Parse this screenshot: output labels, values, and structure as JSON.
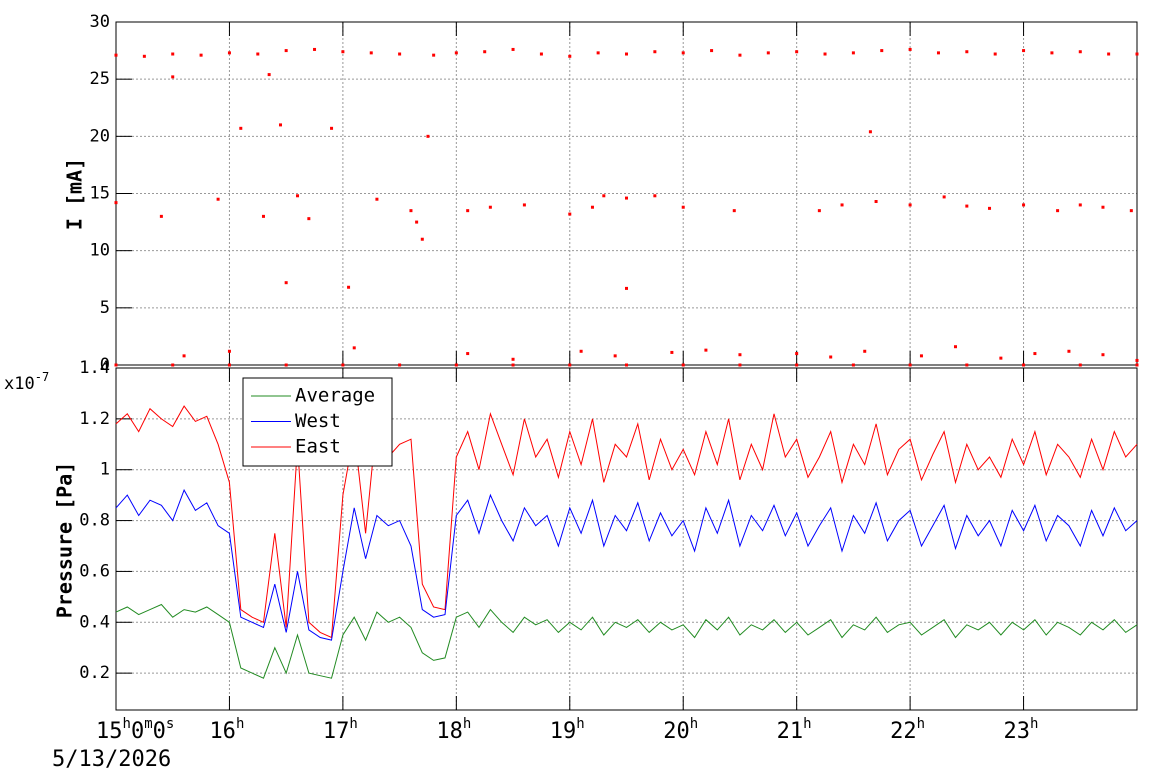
{
  "chart_data": [
    {
      "type": "scatter",
      "y_label": "I [mA]",
      "color": "#ff0000",
      "xlim": [
        15,
        24
      ],
      "ylim": [
        0,
        30
      ],
      "yticks": [
        0,
        5,
        10,
        15,
        20,
        25,
        30
      ],
      "grid": true,
      "x": [
        15.0,
        15.25,
        15.5,
        15.75,
        16.0,
        16.25,
        16.5,
        16.75,
        17.0,
        17.25,
        17.5,
        17.8,
        18.0,
        18.25,
        18.5,
        18.75,
        19.0,
        19.25,
        19.5,
        19.75,
        20.0,
        20.25,
        20.5,
        20.75,
        21.0,
        21.25,
        21.5,
        21.75,
        22.0,
        22.25,
        22.5,
        22.75,
        23.0,
        23.25,
        23.5,
        23.75,
        24.0,
        15.0,
        15.5,
        15.4,
        15.9,
        16.1,
        16.3,
        16.35,
        16.45,
        16.5,
        16.6,
        16.7,
        16.9,
        17.05,
        17.3,
        17.6,
        17.65,
        17.7,
        17.75,
        18.1,
        18.3,
        18.6,
        19.0,
        19.2,
        19.3,
        19.5,
        19.5,
        19.75,
        20.0,
        20.45,
        21.2,
        21.4,
        21.65,
        21.7,
        22.0,
        22.3,
        22.5,
        22.7,
        23.0,
        23.3,
        23.5,
        23.7,
        23.95,
        15.6,
        16.0,
        17.1,
        18.1,
        18.5,
        19.1,
        19.4,
        19.9,
        20.2,
        20.5,
        21.0,
        21.3,
        21.6,
        22.1,
        22.4,
        22.8,
        23.1,
        23.4,
        23.7,
        24.0,
        15.0,
        15.5,
        16.0,
        16.5,
        17.0,
        17.5,
        18.0,
        18.5,
        19.0,
        19.5,
        20.0,
        20.5,
        21.0,
        21.5,
        22.0,
        22.5,
        23.0,
        23.5,
        24.0
      ],
      "values": [
        27.1,
        27.0,
        27.2,
        27.1,
        27.3,
        27.2,
        27.5,
        27.6,
        27.4,
        27.3,
        27.2,
        27.1,
        27.3,
        27.4,
        27.6,
        27.2,
        27.0,
        27.3,
        27.2,
        27.4,
        27.3,
        27.5,
        27.1,
        27.3,
        27.4,
        27.2,
        27.3,
        27.5,
        27.6,
        27.3,
        27.4,
        27.2,
        27.5,
        27.3,
        27.4,
        27.2,
        27.2,
        14.2,
        25.2,
        13.0,
        14.5,
        20.7,
        13.0,
        25.4,
        21.0,
        7.2,
        14.8,
        12.8,
        20.7,
        6.8,
        14.5,
        13.5,
        12.5,
        11.0,
        20.0,
        13.5,
        13.8,
        14.0,
        13.2,
        13.8,
        14.8,
        14.6,
        6.7,
        14.8,
        13.8,
        13.5,
        13.5,
        14.0,
        20.4,
        14.3,
        14.0,
        14.7,
        13.9,
        13.7,
        14.0,
        13.5,
        14.0,
        13.8,
        13.5,
        0.8,
        1.2,
        1.5,
        1.0,
        0.5,
        1.2,
        0.8,
        1.1,
        1.3,
        0.9,
        1.0,
        0.7,
        1.2,
        0.8,
        1.6,
        0.6,
        1.0,
        1.2,
        0.9,
        0.4,
        0,
        0,
        0,
        0,
        0,
        0,
        0,
        0,
        0,
        0,
        0,
        0,
        0,
        0,
        0,
        0,
        0,
        0,
        0
      ]
    },
    {
      "type": "line",
      "y_label": "Pressure [Pa]",
      "y_multiplier": {
        "base": "x10",
        "power": "-7"
      },
      "date_label": "5/13/2026",
      "xlim": [
        15,
        24
      ],
      "ylim": [
        0.055,
        1.4
      ],
      "xticks": [
        {
          "value": 15,
          "label": "15h0m0s"
        },
        {
          "value": 16,
          "label": "16h"
        },
        {
          "value": 17,
          "label": "17h"
        },
        {
          "value": 18,
          "label": "18h"
        },
        {
          "value": 19,
          "label": "19h"
        },
        {
          "value": 20,
          "label": "20h"
        },
        {
          "value": 21,
          "label": "21h"
        },
        {
          "value": 22,
          "label": "22h"
        },
        {
          "value": 23,
          "label": "23h"
        }
      ],
      "yticks": [
        0.2,
        0.4,
        0.6,
        0.8,
        1,
        1.2,
        1.4
      ],
      "grid": true,
      "legend": "top-left",
      "x": [
        15.0,
        15.1,
        15.2,
        15.3,
        15.4,
        15.5,
        15.6,
        15.7,
        15.8,
        15.9,
        16.0,
        16.1,
        16.2,
        16.3,
        16.4,
        16.5,
        16.6,
        16.7,
        16.8,
        16.9,
        17.0,
        17.1,
        17.2,
        17.3,
        17.4,
        17.5,
        17.6,
        17.7,
        17.8,
        17.9,
        18.0,
        18.1,
        18.2,
        18.3,
        18.4,
        18.5,
        18.6,
        18.7,
        18.8,
        18.9,
        19.0,
        19.1,
        19.2,
        19.3,
        19.4,
        19.5,
        19.6,
        19.7,
        19.8,
        19.9,
        20.0,
        20.1,
        20.2,
        20.3,
        20.4,
        20.5,
        20.6,
        20.7,
        20.8,
        20.9,
        21.0,
        21.1,
        21.2,
        21.3,
        21.4,
        21.5,
        21.6,
        21.7,
        21.8,
        21.9,
        22.0,
        22.1,
        22.2,
        22.3,
        22.4,
        22.5,
        22.6,
        22.7,
        22.8,
        22.9,
        23.0,
        23.1,
        23.2,
        23.3,
        23.4,
        23.5,
        23.6,
        23.7,
        23.8,
        23.9,
        24.0
      ],
      "series": [
        {
          "name": "Average",
          "color": "#228b22",
          "values": [
            0.44,
            0.46,
            0.43,
            0.45,
            0.47,
            0.42,
            0.45,
            0.44,
            0.46,
            0.43,
            0.4,
            0.22,
            0.2,
            0.18,
            0.3,
            0.2,
            0.35,
            0.2,
            0.19,
            0.18,
            0.35,
            0.42,
            0.33,
            0.44,
            0.4,
            0.42,
            0.38,
            0.28,
            0.25,
            0.26,
            0.42,
            0.44,
            0.38,
            0.45,
            0.4,
            0.36,
            0.42,
            0.39,
            0.41,
            0.36,
            0.4,
            0.37,
            0.42,
            0.35,
            0.4,
            0.38,
            0.41,
            0.36,
            0.4,
            0.37,
            0.39,
            0.34,
            0.41,
            0.37,
            0.42,
            0.35,
            0.39,
            0.37,
            0.41,
            0.36,
            0.4,
            0.35,
            0.38,
            0.41,
            0.34,
            0.39,
            0.37,
            0.42,
            0.36,
            0.39,
            0.4,
            0.35,
            0.38,
            0.41,
            0.34,
            0.39,
            0.37,
            0.4,
            0.35,
            0.4,
            0.37,
            0.41,
            0.35,
            0.4,
            0.38,
            0.35,
            0.4,
            0.37,
            0.41,
            0.36,
            0.39
          ]
        },
        {
          "name": "West",
          "color": "#0000ff",
          "values": [
            0.85,
            0.9,
            0.82,
            0.88,
            0.86,
            0.8,
            0.92,
            0.84,
            0.87,
            0.78,
            0.75,
            0.42,
            0.4,
            0.38,
            0.55,
            0.36,
            0.6,
            0.37,
            0.34,
            0.33,
            0.6,
            0.85,
            0.65,
            0.82,
            0.78,
            0.8,
            0.7,
            0.45,
            0.42,
            0.43,
            0.82,
            0.88,
            0.75,
            0.9,
            0.8,
            0.72,
            0.85,
            0.78,
            0.82,
            0.7,
            0.85,
            0.75,
            0.88,
            0.7,
            0.82,
            0.76,
            0.87,
            0.72,
            0.83,
            0.74,
            0.8,
            0.68,
            0.85,
            0.75,
            0.88,
            0.7,
            0.82,
            0.76,
            0.86,
            0.74,
            0.83,
            0.7,
            0.78,
            0.85,
            0.68,
            0.82,
            0.75,
            0.87,
            0.72,
            0.8,
            0.84,
            0.7,
            0.78,
            0.86,
            0.69,
            0.82,
            0.74,
            0.8,
            0.7,
            0.84,
            0.76,
            0.86,
            0.72,
            0.82,
            0.78,
            0.7,
            0.84,
            0.74,
            0.85,
            0.76,
            0.8
          ]
        },
        {
          "name": "East",
          "color": "#ff0000",
          "values": [
            1.18,
            1.22,
            1.15,
            1.24,
            1.2,
            1.17,
            1.25,
            1.19,
            1.21,
            1.1,
            0.95,
            0.45,
            0.42,
            0.4,
            0.75,
            0.38,
            1.1,
            0.4,
            0.36,
            0.34,
            0.9,
            1.15,
            0.75,
            1.2,
            1.05,
            1.1,
            1.12,
            0.55,
            0.46,
            0.45,
            1.05,
            1.15,
            1.0,
            1.22,
            1.1,
            0.98,
            1.2,
            1.05,
            1.12,
            0.97,
            1.15,
            1.02,
            1.2,
            0.95,
            1.1,
            1.05,
            1.18,
            0.96,
            1.12,
            1.0,
            1.08,
            0.98,
            1.15,
            1.02,
            1.2,
            0.96,
            1.1,
            1.0,
            1.22,
            1.05,
            1.12,
            0.97,
            1.05,
            1.15,
            0.95,
            1.1,
            1.02,
            1.18,
            0.98,
            1.08,
            1.12,
            0.96,
            1.06,
            1.15,
            0.95,
            1.1,
            1.0,
            1.05,
            0.97,
            1.12,
            1.02,
            1.15,
            0.98,
            1.1,
            1.05,
            0.97,
            1.12,
            1.0,
            1.15,
            1.05,
            1.1
          ]
        }
      ]
    }
  ]
}
